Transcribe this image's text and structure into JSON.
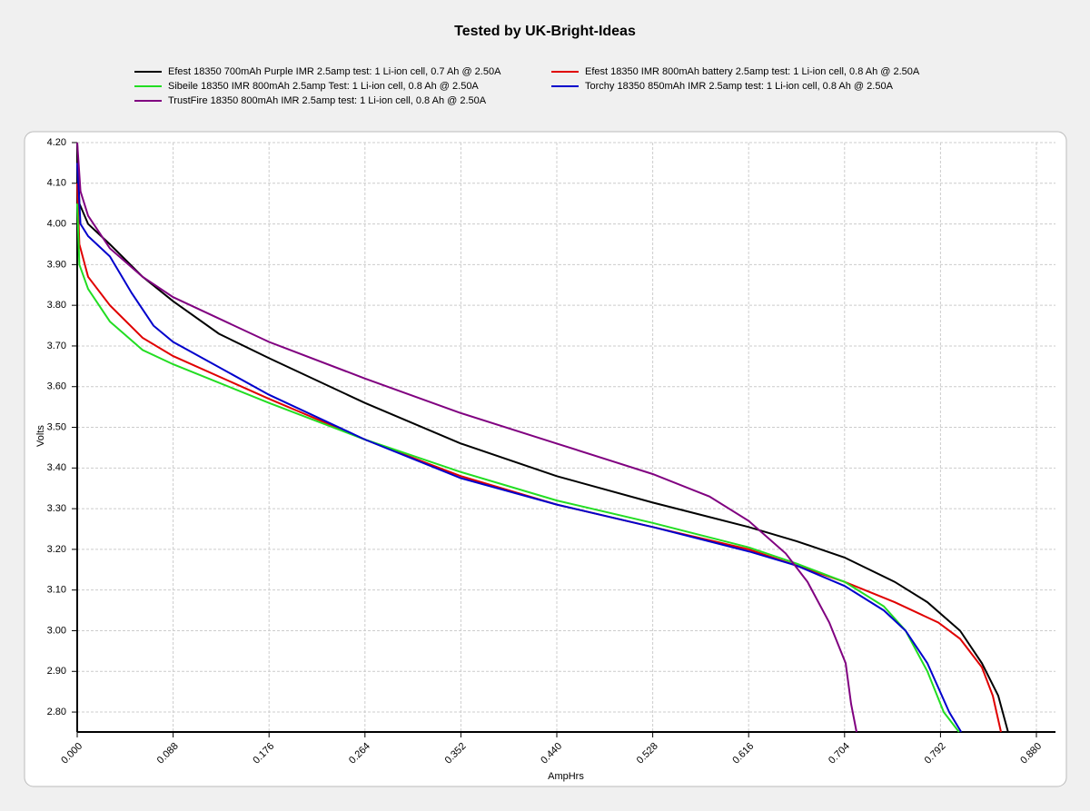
{
  "chart_data": {
    "type": "line",
    "title": "Tested by UK-Bright-Ideas",
    "x_label": "AmpHrs",
    "y_label": "Volts",
    "xlim": [
      0,
      0.8975
    ],
    "ylim": [
      2.751,
      4.2
    ],
    "xticks": [
      {
        "value": 0,
        "label": "0.000"
      },
      0.088,
      0.176,
      0.264,
      0.352,
      {
        "value": 0.44,
        "label": "0.440"
      },
      0.528,
      0.616,
      0.704,
      0.792,
      {
        "value": 0.88,
        "label": "0.880"
      }
    ],
    "yticks": [
      {
        "value": 2.8,
        "label": "2.80"
      },
      {
        "value": 2.9,
        "label": "2.90"
      },
      {
        "value": 3.0,
        "label": "3.00"
      },
      {
        "value": 3.1,
        "label": "3.10"
      },
      {
        "value": 3.2,
        "label": "3.20"
      },
      {
        "value": 3.3,
        "label": "3.30"
      },
      {
        "value": 3.4,
        "label": "3.40"
      },
      {
        "value": 3.5,
        "label": "3.50"
      },
      {
        "value": 3.6,
        "label": "3.60"
      },
      {
        "value": 3.7,
        "label": "3.70"
      },
      {
        "value": 3.8,
        "label": "3.80"
      },
      {
        "value": 3.9,
        "label": "3.90"
      },
      {
        "value": 4.0,
        "label": "4.00"
      },
      {
        "value": 4.1,
        "label": "4.10"
      },
      {
        "value": 4.2,
        "label": "4.20"
      }
    ],
    "grid": true,
    "series": [
      {
        "name": "Efest 18350 700mAh Purple IMR 2.5amp test: 1 Li-ion cell, 0.7 Ah @ 2.50A",
        "color": "#000000",
        "x": [
          0,
          0.002,
          0.01,
          0.03,
          0.06,
          0.088,
          0.13,
          0.176,
          0.264,
          0.352,
          0.44,
          0.528,
          0.616,
          0.66,
          0.704,
          0.75,
          0.78,
          0.81,
          0.83,
          0.845,
          0.854
        ],
        "values": [
          4.2,
          4.05,
          4.0,
          3.95,
          3.87,
          3.81,
          3.73,
          3.67,
          3.56,
          3.46,
          3.38,
          3.315,
          3.255,
          3.22,
          3.18,
          3.12,
          3.07,
          3.0,
          2.92,
          2.84,
          2.751
        ]
      },
      {
        "name": "Efest 18350 IMR 800mAh battery 2.5amp test: 1 Li-ion cell, 0.8 Ah @ 2.50A",
        "color": "#e00000",
        "x": [
          0,
          0.002,
          0.01,
          0.03,
          0.06,
          0.088,
          0.176,
          0.264,
          0.352,
          0.44,
          0.528,
          0.616,
          0.66,
          0.704,
          0.75,
          0.79,
          0.81,
          0.83,
          0.84,
          0.8475
        ],
        "values": [
          4.1,
          3.95,
          3.87,
          3.8,
          3.72,
          3.675,
          3.57,
          3.47,
          3.38,
          3.31,
          3.255,
          3.2,
          3.16,
          3.12,
          3.07,
          3.02,
          2.98,
          2.91,
          2.84,
          2.751
        ]
      },
      {
        "name": "Sibeile 18350 IMR 800mAh 2.5amp Test: 1 Li-ion cell, 0.8 Ah @ 2.50A",
        "color": "#22dd22",
        "x": [
          0,
          0.002,
          0.01,
          0.03,
          0.06,
          0.088,
          0.176,
          0.264,
          0.352,
          0.44,
          0.528,
          0.616,
          0.66,
          0.704,
          0.74,
          0.76,
          0.78,
          0.795,
          0.809
        ],
        "values": [
          4.05,
          3.9,
          3.84,
          3.76,
          3.69,
          3.655,
          3.56,
          3.47,
          3.39,
          3.32,
          3.265,
          3.205,
          3.165,
          3.12,
          3.06,
          3.0,
          2.9,
          2.8,
          2.751
        ]
      },
      {
        "name": "Torchy 18350 850mAh IMR 2.5amp test: 1 Li-ion cell, 0.8 Ah @ 2.50A",
        "color": "#0000cc",
        "x": [
          0,
          0.003,
          0.01,
          0.03,
          0.05,
          0.07,
          0.088,
          0.176,
          0.264,
          0.352,
          0.44,
          0.528,
          0.616,
          0.66,
          0.704,
          0.74,
          0.76,
          0.78,
          0.8,
          0.811
        ],
        "values": [
          4.15,
          4.0,
          3.97,
          3.92,
          3.83,
          3.75,
          3.71,
          3.58,
          3.47,
          3.375,
          3.31,
          3.255,
          3.195,
          3.16,
          3.11,
          3.05,
          3.0,
          2.92,
          2.8,
          2.751
        ]
      },
      {
        "name": "TrustFire 18350 800mAh IMR 2.5amp test: 1 Li-ion cell, 0.8 Ah @ 2.50A",
        "color": "#800080",
        "x": [
          0,
          0.003,
          0.01,
          0.03,
          0.06,
          0.088,
          0.176,
          0.264,
          0.352,
          0.44,
          0.528,
          0.58,
          0.616,
          0.65,
          0.67,
          0.69,
          0.705,
          0.71,
          0.715
        ],
        "values": [
          4.2,
          4.08,
          4.02,
          3.94,
          3.87,
          3.82,
          3.71,
          3.62,
          3.535,
          3.46,
          3.385,
          3.33,
          3.27,
          3.19,
          3.12,
          3.02,
          2.92,
          2.82,
          2.751
        ]
      }
    ]
  }
}
